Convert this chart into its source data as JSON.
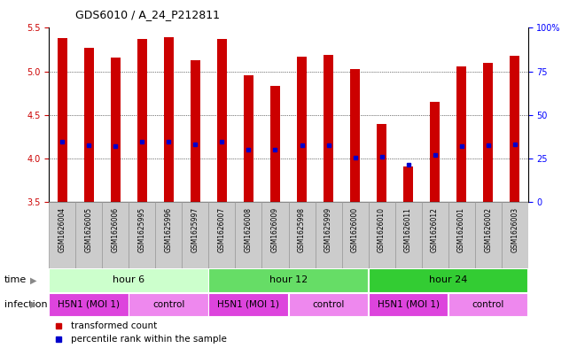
{
  "title": "GDS6010 / A_24_P212811",
  "samples": [
    "GSM1626004",
    "GSM1626005",
    "GSM1626006",
    "GSM1625995",
    "GSM1625996",
    "GSM1625997",
    "GSM1626007",
    "GSM1626008",
    "GSM1626009",
    "GSM1625998",
    "GSM1625999",
    "GSM1626000",
    "GSM1626010",
    "GSM1626011",
    "GSM1626012",
    "GSM1626001",
    "GSM1626002",
    "GSM1626003"
  ],
  "bar_heights": [
    5.38,
    5.27,
    5.16,
    5.37,
    5.39,
    5.13,
    5.37,
    4.95,
    4.83,
    5.17,
    5.19,
    5.03,
    4.39,
    3.91,
    4.65,
    5.06,
    5.1,
    5.18
  ],
  "percentile_values": [
    4.19,
    4.15,
    4.14,
    4.19,
    4.19,
    4.16,
    4.19,
    4.1,
    4.1,
    4.15,
    4.15,
    4.01,
    4.02,
    3.93,
    4.04,
    4.14,
    4.15,
    4.16
  ],
  "bar_color": "#cc0000",
  "percentile_color": "#0000cc",
  "ymin": 3.5,
  "ymax": 5.5,
  "yticks_left": [
    3.5,
    4.0,
    4.5,
    5.0,
    5.5
  ],
  "yticks_right": [
    0,
    25,
    50,
    75,
    100
  ],
  "ytick_labels_right": [
    "0",
    "25",
    "50",
    "75",
    "100%"
  ],
  "grid_values": [
    4.0,
    4.5,
    5.0
  ],
  "bar_color_red": "#cc0000",
  "percentile_color_blue": "#0000cc",
  "time_h6_color": "#ccffcc",
  "time_h12_color": "#66dd66",
  "time_h24_color": "#33cc33",
  "infection_h5n1_color": "#dd44dd",
  "infection_control_color": "#ee88ee",
  "sample_box_color": "#cccccc",
  "sample_box_edge": "#999999",
  "legend_label_count": "transformed count",
  "legend_label_percentile": "percentile rank within the sample",
  "xlabel_time": "time",
  "xlabel_infection": "infection",
  "bar_width": 0.35,
  "background_color": "#ffffff"
}
